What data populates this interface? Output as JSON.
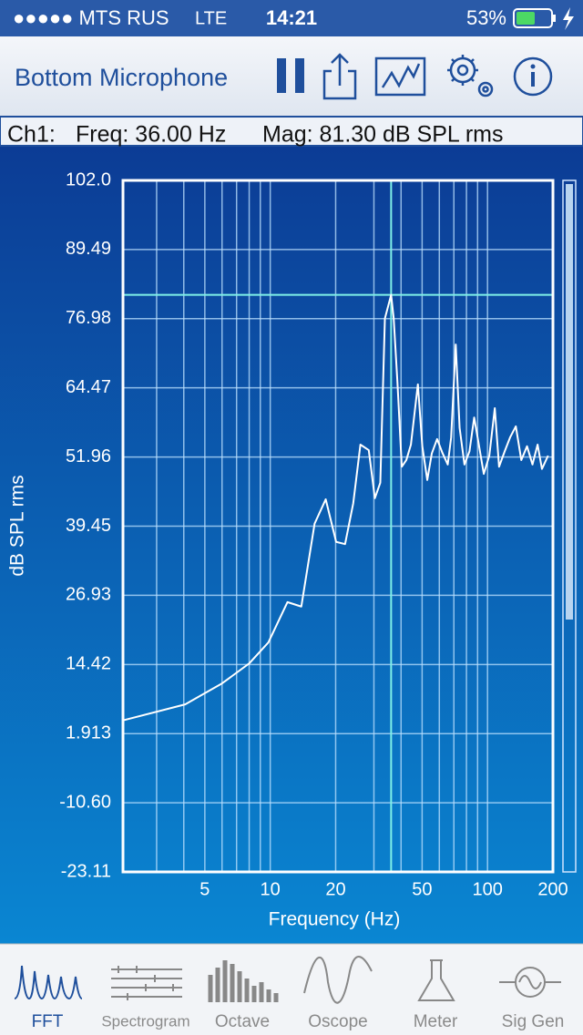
{
  "status_bar": {
    "carrier": "●●●●● MTS RUS",
    "network": "LTE",
    "time": "14:21",
    "battery": "53%"
  },
  "header": {
    "title": "Bottom Microphone"
  },
  "readout": {
    "channel": "Ch1:",
    "freq": "Freq: 36.00 Hz",
    "mag": "Mag: 81.30 dB SPL rms"
  },
  "chart_data": {
    "type": "line",
    "x_label": "Frequency (Hz)",
    "y_label": "dB SPL rms",
    "x": [
      2.1,
      4.06,
      6.0,
      8.0,
      9.8,
      12.0,
      13.9,
      16.0,
      18.0,
      20.1,
      22.1,
      24.1,
      26.0,
      28.4,
      30.3,
      32.1,
      33.7,
      36.0,
      37.0,
      38.5,
      40.3,
      42.3,
      44.4,
      47.8,
      50.1,
      52.8,
      55.4,
      58.6,
      62.0,
      65.6,
      68.0,
      71.4,
      74.4,
      78.3,
      82.6,
      86.8,
      91.0,
      96.1,
      101.9,
      108,
      113,
      120,
      127,
      135,
      143,
      152,
      161,
      170,
      178,
      190
    ],
    "values": [
      4.3,
      7.2,
      11.0,
      14.6,
      18.4,
      25.7,
      24.9,
      39.9,
      44.3,
      36.6,
      36.2,
      43.6,
      54.2,
      53.2,
      44.5,
      47.3,
      77.0,
      81.3,
      77.0,
      65.4,
      50.2,
      51.4,
      54.2,
      65.1,
      53.9,
      47.8,
      52.6,
      55.2,
      52.7,
      50.6,
      55.5,
      72.3,
      57.2,
      50.6,
      53.0,
      59.1,
      54.4,
      48.9,
      52.2,
      60.8,
      50.2,
      53.0,
      55.5,
      57.5,
      51.4,
      53.9,
      50.6,
      54.2,
      49.8,
      52.2
    ],
    "color": "#ffffff",
    "x_log": true,
    "xlim": [
      2.1,
      200
    ],
    "xticks": [
      5,
      10,
      20,
      50,
      100,
      200
    ],
    "x_minor_grid": [
      3,
      4,
      6,
      7,
      8,
      9,
      30,
      40,
      60,
      70,
      80,
      90
    ],
    "ylim": [
      -23.11,
      102.0
    ],
    "yticks": [
      {
        "value": 102.0,
        "label": "102.0"
      },
      89.49,
      76.98,
      64.47,
      51.96,
      39.45,
      26.93,
      14.42,
      1.913,
      {
        "value": -10.6,
        "label": "-10.60"
      },
      -23.11
    ],
    "grid": true,
    "cursor": {
      "x": 36,
      "y": 81.3
    }
  },
  "tabs": [
    {
      "label": "FFT",
      "selected": true
    },
    {
      "label": "Spectrogram",
      "selected": false
    },
    {
      "label": "Octave",
      "selected": false
    },
    {
      "label": "Oscope",
      "selected": false
    },
    {
      "label": "Meter",
      "selected": false
    },
    {
      "label": "Sig Gen",
      "selected": false
    }
  ]
}
